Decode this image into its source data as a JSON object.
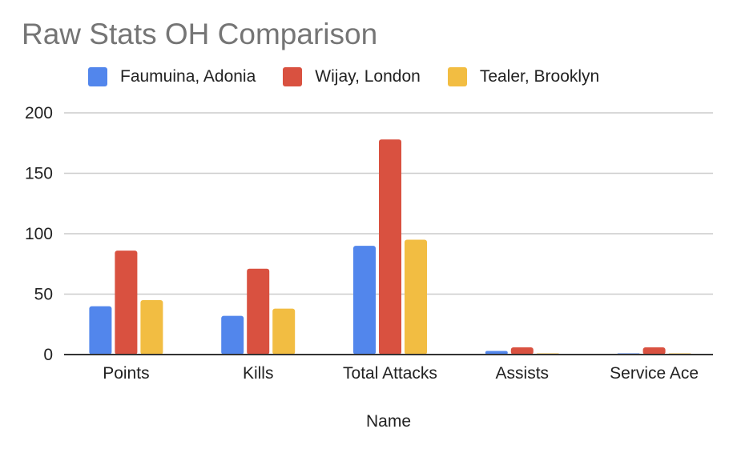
{
  "chart_data": {
    "type": "bar",
    "title": "Raw Stats OH Comparison",
    "xlabel": "Name",
    "ylabel": "",
    "ylim": [
      0,
      200
    ],
    "yticks": [
      0,
      50,
      100,
      150,
      200
    ],
    "grid": true,
    "legend_position": "top",
    "categories": [
      "Points",
      "Kills",
      "Total Attacks",
      "Assists",
      "Service Ace"
    ],
    "series": [
      {
        "name": "Faumuina, Adonia",
        "color": "#5286EC",
        "values": [
          40,
          32,
          90,
          3,
          1
        ]
      },
      {
        "name": "Wijay, London",
        "color": "#D95140",
        "values": [
          86,
          71,
          178,
          6,
          6
        ]
      },
      {
        "name": "Tealer, Brooklyn",
        "color": "#F2BD42",
        "values": [
          45,
          38,
          95,
          1,
          1
        ]
      }
    ]
  }
}
